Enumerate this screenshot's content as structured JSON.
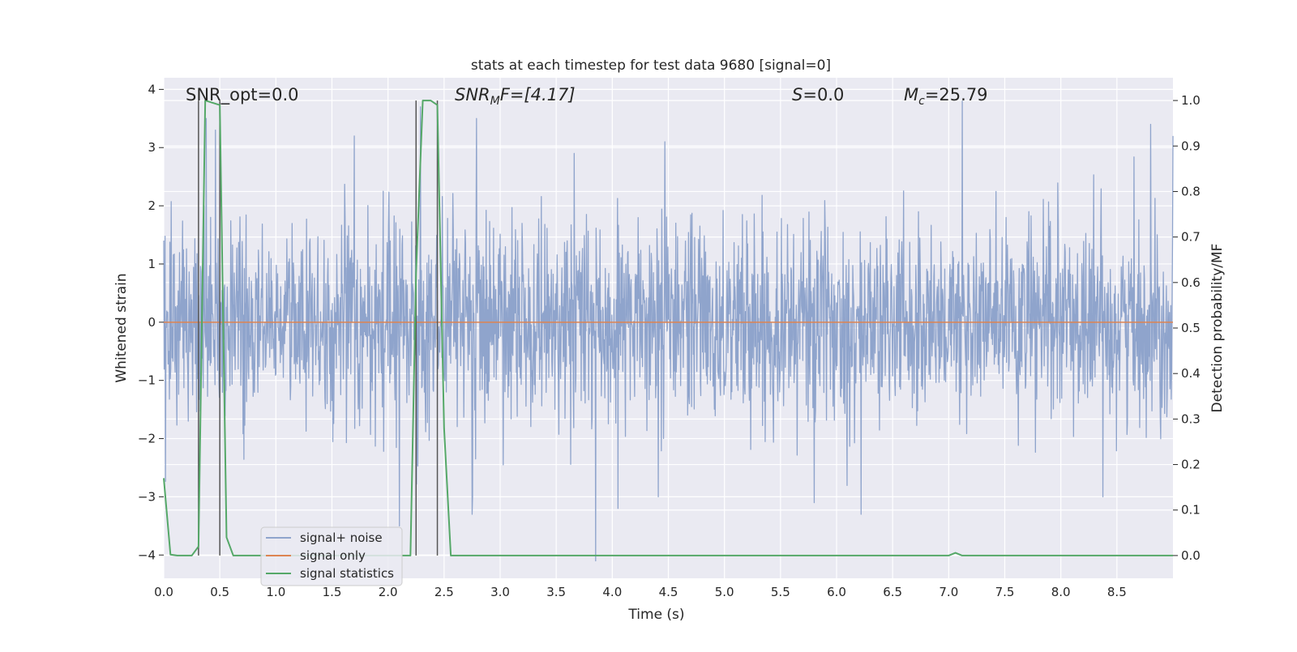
{
  "chart_data": {
    "type": "line",
    "title": "stats at each timestep for test data 9680 [signal=0]",
    "xlabel": "Time (s)",
    "ylabel_left": "Whitened strain",
    "ylabel_right": "Detection probability/MF",
    "xlim": [
      0.0,
      9.0
    ],
    "ylim_left": [
      -4.4,
      4.2
    ],
    "ylim_right": [
      -0.05,
      1.05
    ],
    "xticks": [
      "0.0",
      "0.5",
      "1.0",
      "1.5",
      "2.0",
      "2.5",
      "3.0",
      "3.5",
      "4.0",
      "4.5",
      "5.0",
      "5.5",
      "6.0",
      "6.5",
      "7.0",
      "7.5",
      "8.0",
      "8.5"
    ],
    "yticks_left": [
      "4",
      "3",
      "2",
      "1",
      "0",
      "−1",
      "−2",
      "−3",
      "−4"
    ],
    "yticks_left_values": [
      4,
      3,
      2,
      1,
      0,
      -1,
      -2,
      -3,
      -4
    ],
    "yticks_right": [
      "1.0",
      "0.9",
      "0.8",
      "0.7",
      "0.6",
      "0.5",
      "0.4",
      "0.3",
      "0.2",
      "0.1",
      "0.0"
    ],
    "yticks_right_values": [
      1.0,
      0.9,
      0.8,
      0.7,
      0.6,
      0.5,
      0.4,
      0.3,
      0.2,
      0.1,
      0.0
    ],
    "grid": true,
    "legend_placement": "lower-left",
    "annotations": {
      "snr_opt": "SNR_opt=0.0",
      "snr_mf_main": "SNR",
      "snr_mf_sub": "M",
      "snr_mf_rest": "F=[4.17]",
      "s_label": "S",
      "s_rest": "=0.0",
      "mc_main": "M",
      "mc_sub": "c",
      "mc_rest": "=25.79"
    },
    "vertical_markers_x": [
      0.31,
      0.5,
      2.25,
      2.44
    ],
    "series": [
      {
        "name": "signal+ noise",
        "color": "#8fa4cc",
        "axis": "left",
        "sample_rate": 256,
        "amplitude_envelope": 1.6,
        "extreme_peaks": [
          {
            "x": 0.38,
            "y": 3.5
          },
          {
            "x": 0.46,
            "y": 3.3
          },
          {
            "x": 2.29,
            "y": 3.7
          },
          {
            "x": 2.79,
            "y": 3.5
          },
          {
            "x": 7.12,
            "y": 3.8
          },
          {
            "x": 8.8,
            "y": 3.4
          },
          {
            "x": 9.0,
            "y": 3.2
          },
          {
            "x": 4.47,
            "y": 3.1
          },
          {
            "x": 1.7,
            "y": 3.2
          },
          {
            "x": 3.85,
            "y": -4.1
          },
          {
            "x": 2.1,
            "y": -3.5
          },
          {
            "x": 6.22,
            "y": -3.3
          },
          {
            "x": 2.75,
            "y": -3.3
          },
          {
            "x": 4.05,
            "y": -3.2
          },
          {
            "x": 5.8,
            "y": -3.1
          }
        ]
      },
      {
        "name": "signal only",
        "color": "#dd8452",
        "axis": "left",
        "x": [
          0.0,
          9.0
        ],
        "y": [
          0.0,
          0.0
        ]
      },
      {
        "name": "signal statistics",
        "color": "#55a868",
        "axis": "right",
        "x": [
          0.0,
          0.06,
          0.12,
          0.25,
          0.31,
          0.37,
          0.5,
          0.56,
          0.62,
          0.69,
          2.2,
          2.25,
          2.31,
          2.38,
          2.44,
          2.5,
          2.56,
          7.0,
          7.06,
          7.12,
          9.0
        ],
        "y": [
          0.17,
          0.002,
          0.0,
          0.0,
          0.02,
          1.0,
          0.99,
          0.04,
          0.0,
          0.0,
          0.0,
          0.62,
          1.0,
          1.0,
          0.99,
          0.28,
          0.0,
          0.0,
          0.006,
          0.0,
          0.0
        ]
      }
    ]
  }
}
